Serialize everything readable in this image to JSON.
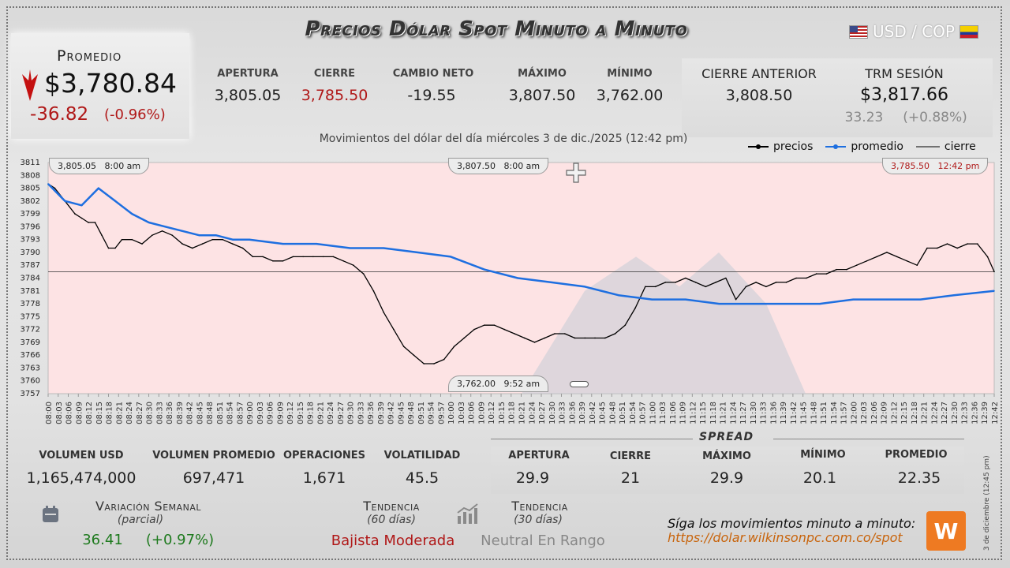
{
  "header": {
    "title": "Precios Dólar Spot Minuto a Minuto",
    "pair": "USD / COP"
  },
  "promedio": {
    "label": "Promedio",
    "value": "$3,780.84",
    "change": "-36.82",
    "change_pct": "(-0.96%)"
  },
  "stats": [
    {
      "label": "APERTURA",
      "value": "3,805.05",
      "color": "#222222"
    },
    {
      "label": "CIERRE",
      "value": "3,785.50",
      "color": "#b01818"
    },
    {
      "label": "CAMBIO NETO",
      "value": "-19.55",
      "color": "#222222"
    },
    {
      "label": "MÁXIMO",
      "value": "3,807.50",
      "color": "#222222"
    },
    {
      "label": "MÍNIMO",
      "value": "3,762.00",
      "color": "#222222"
    }
  ],
  "previous": {
    "cierre_label": "CIERRE ANTERIOR",
    "cierre_value": "3,808.50",
    "trm_label": "TRM SESIÓN",
    "trm_value": "$3,817.66",
    "trm_change": "33.23",
    "trm_change_pct": "(+0.88%)"
  },
  "chart_subtitle": "Movimientos del dólar del día miércoles 3 de dic./2025 (12:42 pm)",
  "legend": {
    "precios": "precios",
    "promedio": "promedio",
    "cierre": "cierre"
  },
  "callouts": {
    "open": {
      "value": "3,805.05",
      "time": "8:00 am"
    },
    "max": {
      "value": "3,807.50",
      "time": "8:00 am"
    },
    "close": {
      "value": "3,785.50",
      "time": "12:42 pm"
    },
    "min": {
      "value": "3,762.00",
      "time": "9:52 am"
    }
  },
  "chart_data": {
    "type": "line",
    "ylim": [
      3757,
      3811
    ],
    "y_ticks": [
      3757,
      3760,
      3763,
      3766,
      3769,
      3772,
      3775,
      3778,
      3781,
      3784,
      3787,
      3790,
      3793,
      3796,
      3799,
      3802,
      3805,
      3808,
      3811
    ],
    "x_ticks": [
      "08:00",
      "08:03",
      "08:06",
      "08:09",
      "08:12",
      "08:15",
      "08:18",
      "08:21",
      "08:24",
      "08:27",
      "08:30",
      "08:33",
      "08:36",
      "08:39",
      "08:42",
      "08:45",
      "08:48",
      "08:51",
      "08:54",
      "08:57",
      "09:00",
      "09:03",
      "09:06",
      "09:09",
      "09:12",
      "09:15",
      "09:18",
      "09:21",
      "09:24",
      "09:27",
      "09:30",
      "09:33",
      "09:36",
      "09:39",
      "09:42",
      "09:45",
      "09:48",
      "09:51",
      "09:54",
      "09:57",
      "10:00",
      "10:03",
      "10:06",
      "10:09",
      "10:12",
      "10:15",
      "10:18",
      "10:21",
      "10:24",
      "10:27",
      "10:30",
      "10:33",
      "10:36",
      "10:39",
      "10:42",
      "10:45",
      "10:48",
      "10:51",
      "10:54",
      "10:57",
      "11:00",
      "11:03",
      "11:06",
      "11:09",
      "11:12",
      "11:15",
      "11:18",
      "11:21",
      "11:24",
      "11:27",
      "11:30",
      "11:33",
      "11:36",
      "11:39",
      "11:42",
      "11:45",
      "11:48",
      "11:51",
      "11:54",
      "11:57",
      "12:00",
      "12:03",
      "12:06",
      "12:09",
      "12:12",
      "12:15",
      "12:18",
      "12:21",
      "12:24",
      "12:27",
      "12:30",
      "12:33",
      "12:36",
      "12:39",
      "12:42"
    ],
    "cierre_line": 3785.5,
    "series": [
      {
        "name": "precios",
        "color": "#000000",
        "x": [
          "08:00",
          "08:02",
          "08:05",
          "08:08",
          "08:10",
          "08:12",
          "08:14",
          "08:16",
          "08:18",
          "08:20",
          "08:22",
          "08:25",
          "08:28",
          "08:31",
          "08:34",
          "08:37",
          "08:40",
          "08:43",
          "08:46",
          "08:49",
          "08:52",
          "08:55",
          "08:58",
          "09:01",
          "09:04",
          "09:07",
          "09:10",
          "09:13",
          "09:16",
          "09:19",
          "09:22",
          "09:25",
          "09:28",
          "09:31",
          "09:34",
          "09:37",
          "09:40",
          "09:43",
          "09:46",
          "09:49",
          "09:52",
          "09:55",
          "09:58",
          "10:01",
          "10:04",
          "10:07",
          "10:10",
          "10:13",
          "10:16",
          "10:19",
          "10:22",
          "10:25",
          "10:28",
          "10:31",
          "10:34",
          "10:37",
          "10:40",
          "10:43",
          "10:46",
          "10:49",
          "10:52",
          "10:55",
          "10:58",
          "11:01",
          "11:04",
          "11:07",
          "11:10",
          "11:13",
          "11:16",
          "11:19",
          "11:22",
          "11:25",
          "11:28",
          "11:31",
          "11:34",
          "11:37",
          "11:40",
          "11:43",
          "11:46",
          "11:49",
          "11:52",
          "11:55",
          "11:58",
          "12:01",
          "12:04",
          "12:07",
          "12:10",
          "12:13",
          "12:16",
          "12:19",
          "12:22",
          "12:25",
          "12:28",
          "12:31",
          "12:34",
          "12:37",
          "12:40",
          "12:42"
        ],
        "y": [
          3806,
          3805,
          3802,
          3799,
          3798,
          3797,
          3797,
          3794,
          3791,
          3791,
          3793,
          3793,
          3792,
          3794,
          3795,
          3794,
          3792,
          3791,
          3792,
          3793,
          3793,
          3792,
          3791,
          3789,
          3789,
          3788,
          3788,
          3789,
          3789,
          3789,
          3789,
          3789,
          3788,
          3787,
          3785,
          3781,
          3776,
          3772,
          3768,
          3766,
          3764,
          3764,
          3765,
          3768,
          3770,
          3772,
          3773,
          3773,
          3772,
          3771,
          3770,
          3769,
          3770,
          3771,
          3771,
          3770,
          3770,
          3770,
          3770,
          3771,
          3773,
          3777,
          3782,
          3782,
          3783,
          3783,
          3784,
          3783,
          3782,
          3783,
          3784,
          3779,
          3782,
          3783,
          3782,
          3783,
          3783,
          3784,
          3784,
          3785,
          3785,
          3786,
          3786,
          3787,
          3788,
          3789,
          3790,
          3789,
          3788,
          3787,
          3791,
          3791,
          3792,
          3791,
          3792,
          3792,
          3789,
          3785.5
        ]
      },
      {
        "name": "promedio",
        "color": "#1e6fe0",
        "x": [
          "08:00",
          "08:05",
          "08:10",
          "08:15",
          "08:20",
          "08:25",
          "08:30",
          "08:35",
          "08:40",
          "08:45",
          "08:50",
          "08:55",
          "09:00",
          "09:10",
          "09:20",
          "09:30",
          "09:40",
          "09:50",
          "10:00",
          "10:10",
          "10:20",
          "10:30",
          "10:40",
          "10:50",
          "11:00",
          "11:10",
          "11:20",
          "11:30",
          "11:40",
          "11:50",
          "12:00",
          "12:10",
          "12:20",
          "12:30",
          "12:42"
        ],
        "y": [
          3806,
          3802,
          3801,
          3805,
          3802,
          3799,
          3797,
          3796,
          3795,
          3794,
          3794,
          3793,
          3793,
          3792,
          3792,
          3791,
          3791,
          3790,
          3789,
          3786,
          3784,
          3783,
          3782,
          3780,
          3779,
          3779,
          3778,
          3778,
          3778,
          3778,
          3779,
          3779,
          3779,
          3780,
          3781
        ]
      }
    ]
  },
  "bottom_stats": [
    {
      "label": "VOLUMEN USD",
      "value": "1,165,474,000"
    },
    {
      "label": "VOLUMEN PROMEDIO",
      "value": "697,471"
    },
    {
      "label": "OPERACIONES",
      "value": "1,671"
    },
    {
      "label": "VOLATILIDAD",
      "value": "45.5"
    }
  ],
  "spread": {
    "title": "SPREAD",
    "items": [
      {
        "label": "APERTURA",
        "value": "29.9"
      },
      {
        "label": "CIERRE",
        "value": "21"
      },
      {
        "label": "MÁXIMO",
        "value": "29.9"
      },
      {
        "label": "MÍNIMO",
        "value": "20.1"
      },
      {
        "label": "PROMEDIO",
        "value": "22.35"
      }
    ]
  },
  "weekly": {
    "title": "Variación Semanal",
    "sub": "(parcial)",
    "value": "36.41",
    "pct": "(+0.97%)"
  },
  "trend60": {
    "title": "Tendencia",
    "sub": "(60 días)",
    "value": "Bajista Moderada"
  },
  "trend30": {
    "title": "Tendencia",
    "sub": "(30 días)",
    "value": "Neutral En Rango"
  },
  "promo": {
    "text": "Síga los movimientos minuto a minuto:",
    "url": "https://dolar.wilkinsonpc.com.co/spot",
    "logo": "W"
  },
  "side_date": "3 de diciembre (12:45 pm)",
  "colors": {
    "up": "#1e7a1e",
    "down": "#b01818",
    "accent": "#ee7a22",
    "neutral": "#888888"
  }
}
